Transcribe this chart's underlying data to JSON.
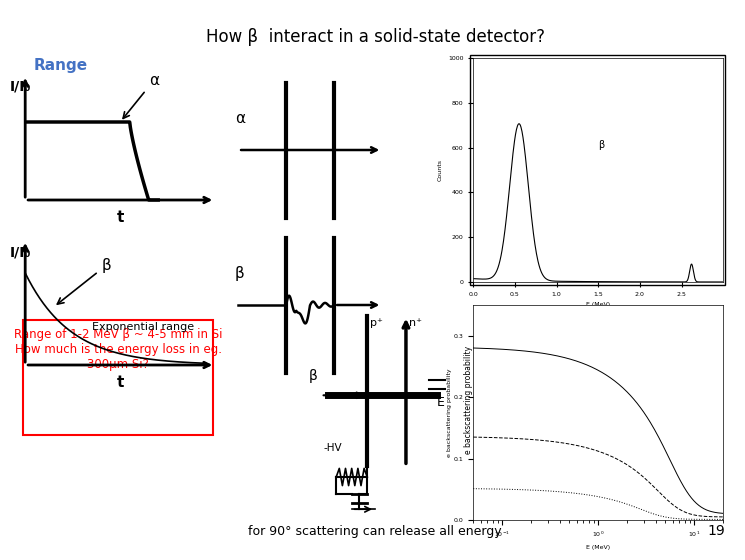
{
  "title": "How β  interact in a solid-state detector?",
  "title_fontsize": 12,
  "range_label": "Range",
  "range_color": "#4472C4",
  "background": "#ffffff",
  "alpha_label": "α",
  "beta_label": "β",
  "ii0_label": "I/I₀",
  "t_label": "t",
  "exp_range_text": "Exponential range",
  "range_box_text": "Range of 1-2 MeV β ~ 4-5 mm in Si\nHow much is the energy loss in eg.\n300μm Si?",
  "footer_text": "for 90° scattering can release all energy",
  "page_num": "19",
  "hv_label": "-HV",
  "p_plus_label": "p⁺",
  "n_plus_label": "n⁺",
  "E_label": "E"
}
